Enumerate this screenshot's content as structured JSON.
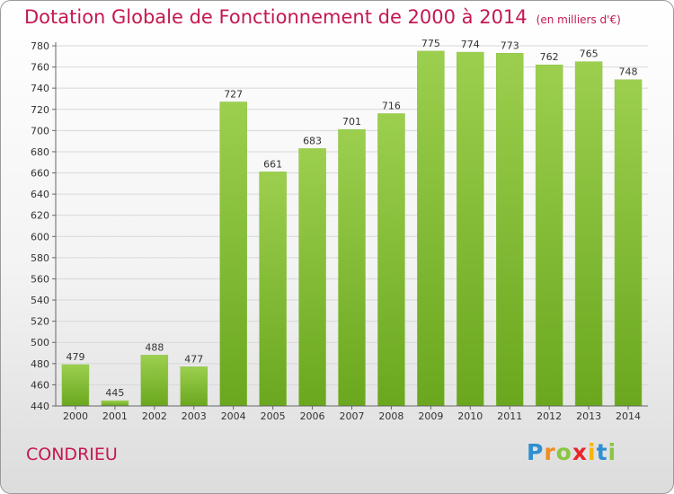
{
  "chart_data": {
    "type": "bar",
    "title": "Dotation Globale de Fonctionnement de 2000 à 2014",
    "unit_note": "(en milliers d'€)",
    "categories": [
      "2000",
      "2001",
      "2002",
      "2003",
      "2004",
      "2005",
      "2006",
      "2007",
      "2008",
      "2009",
      "2010",
      "2011",
      "2012",
      "2013",
      "2014"
    ],
    "values": [
      479,
      445,
      488,
      477,
      727,
      661,
      683,
      701,
      716,
      775,
      774,
      773,
      762,
      765,
      748
    ],
    "ylim": [
      440,
      780
    ],
    "yticks": [
      440,
      460,
      480,
      500,
      520,
      540,
      560,
      580,
      600,
      620,
      640,
      660,
      680,
      700,
      720,
      740,
      760,
      780
    ],
    "grid": true,
    "xlabel": "",
    "ylabel": "",
    "colors": {
      "bar_light": "#9ccf4e",
      "bar_dark": "#6aa71e",
      "title": "#c4184f",
      "grid": "#d8d8d8"
    }
  },
  "footer": {
    "commune": "CONDRIEU",
    "logo": [
      "P",
      "r",
      "o",
      "x",
      "i",
      "t",
      "i"
    ],
    "logo_colors": [
      "#2f8fd1",
      "#f28c1e",
      "#8cc540",
      "#e8262c",
      "#f7b500",
      "#2f8fd1",
      "#8cc540"
    ]
  }
}
